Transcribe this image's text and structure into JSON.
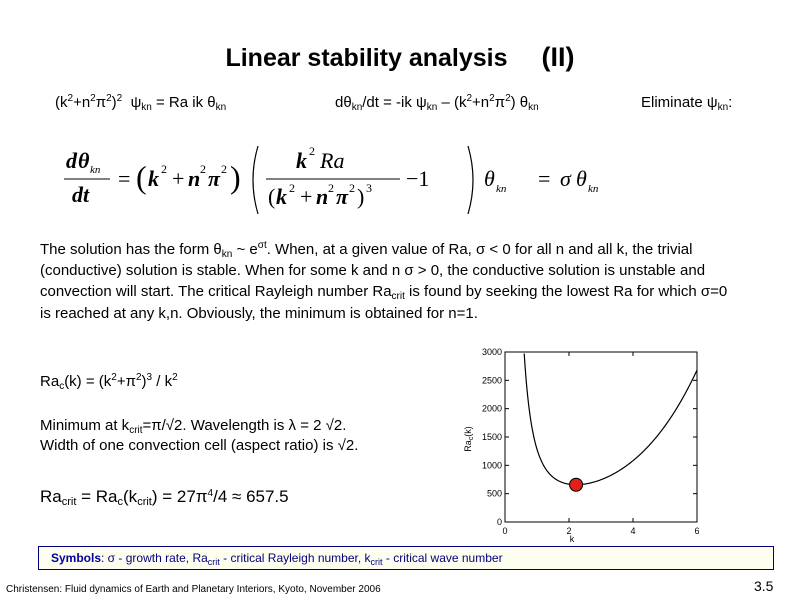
{
  "title": {
    "main": "Linear stability analysis",
    "num": "(II)"
  },
  "eq1": {
    "a": "(k",
    "b": "+n",
    "c": "π",
    "d": ")",
    "e": "ψ",
    "f": " = Ra ik θ",
    "s2": "2",
    "kn": "kn"
  },
  "eq2": {
    "a": "dθ",
    "b": "/dt = -ik ψ",
    "c": " – (k",
    "d": "+n",
    "e": "π",
    "f": ") θ",
    "s2": "2",
    "kn": "kn"
  },
  "eq3": {
    "a": "Eliminate ψ",
    "b": ":",
    "kn": "kn"
  },
  "big_equation": {
    "d": "d",
    "theta": "θ",
    "kn": "kn",
    "dt": "dt",
    "eq": "=",
    "k": "k",
    "n": "n",
    "pi": "π",
    "plus": "+",
    "two": "2",
    "three": "3",
    "ra": "Ra",
    "minus": "−1",
    "sigma": "σ",
    "lp": "(",
    "rp": ")"
  },
  "body": {
    "p1": "The solution has the form θ",
    "kn": "kn",
    "p2": " ~ e",
    "sup": "σt",
    "p3": ". When, at a given value of Ra,  σ < 0 for all n and all k, the trivial (conductive) solution is stable. When for some k and n σ > 0, the conductive solution is unstable and convection will start.  The critical Rayleigh number Ra",
    "crit": "crit",
    "p4": " is found by seeking the lowest Ra for which σ=0 is reached at any k,n. Obviously, the minimum is obtained for n=1."
  },
  "rac_formula": {
    "a": "Ra",
    "c": "c",
    "b": "(k) = (k",
    "d": "+π",
    "e": ")",
    "f": " / k",
    "s2": "2",
    "s3": "3"
  },
  "minimum_text": {
    "a": "Minimum at k",
    "crit": "crit",
    "b": "=π/√2. Wavelength is λ = 2 √2."
  },
  "width_text": "Width of one convection cell  (aspect ratio) is √2.",
  "racrit_text": {
    "a": "Ra",
    "crit": "crit",
    "b": " = Ra",
    "c": "c",
    "d": "(k",
    "e": ") = 27π",
    "f": "/4 ≈ 657.5",
    "s4": "4"
  },
  "chart_data": {
    "type": "line",
    "series": [
      {
        "function": "(k^2+pi^2)^3/k^2",
        "x_range": [
          0.1,
          6
        ]
      }
    ],
    "highlight_point": {
      "x": 2.221,
      "y": 657.5
    },
    "xlabel": "k",
    "ylabel": "Ra_c(k)",
    "xlim": [
      0,
      6
    ],
    "ylim": [
      0,
      3000
    ],
    "x_ticks": [
      "0",
      "2",
      "4",
      "6"
    ],
    "y_ticks": [
      "0",
      "500",
      "1000",
      "1500",
      "2000",
      "2500",
      "3000"
    ],
    "ylabel_parts": {
      "a": "Ra",
      "b": "c",
      "c": "(k)"
    },
    "curve_color": "#000000",
    "point_color": "#e0201a"
  },
  "symbols": {
    "label": "Symbols",
    "t1": ":   σ  -  growth rate,  Ra",
    "crit": "crit",
    "t2": "  -  critical Rayleigh number, k",
    "t3": "  -  critical wave number"
  },
  "footer": "Christensen: Fluid dynamics of Earth and Planetary Interiors, Kyoto, November 2006",
  "slide_number": "3.5"
}
